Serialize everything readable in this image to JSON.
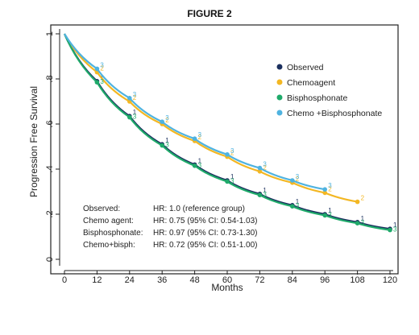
{
  "page": {
    "figure_label": "FIGURE 2"
  },
  "chart_data": {
    "type": "line",
    "xlabel": "Months",
    "ylabel": "Progression Free Survival",
    "xlim": [
      0,
      120
    ],
    "ylim": [
      0,
      1
    ],
    "xticks": [
      0,
      12,
      24,
      36,
      48,
      60,
      72,
      84,
      96,
      108,
      120
    ],
    "yticks": [
      0,
      0.2,
      0.4,
      0.6,
      0.8,
      1
    ],
    "ytick_labels": [
      "0",
      ".2",
      ".4",
      ".6",
      ".8",
      "1"
    ],
    "grid": false,
    "legend_position": "top-right",
    "series": [
      {
        "name": "Observed",
        "color": "#1b2f5e",
        "marker_label": "1",
        "x": [
          0,
          12,
          24,
          36,
          48,
          60,
          72,
          84,
          96,
          108,
          120
        ],
        "values": [
          1.0,
          0.79,
          0.635,
          0.51,
          0.42,
          0.35,
          0.29,
          0.24,
          0.2,
          0.165,
          0.135
        ]
      },
      {
        "name": "Chemoagent",
        "color": "#f3b723",
        "marker_label": "2",
        "x": [
          0,
          12,
          24,
          36,
          48,
          60,
          72,
          84,
          96,
          108
        ],
        "values": [
          1.0,
          0.83,
          0.7,
          0.6,
          0.525,
          0.455,
          0.39,
          0.34,
          0.295,
          0.255
        ]
      },
      {
        "name": "Bisphosphonate",
        "color": "#1faa6a",
        "marker_label": "3",
        "x": [
          0,
          12,
          24,
          36,
          48,
          60,
          72,
          84,
          96,
          108,
          120
        ],
        "values": [
          1.0,
          0.785,
          0.63,
          0.505,
          0.415,
          0.345,
          0.285,
          0.235,
          0.195,
          0.16,
          0.13
        ]
      },
      {
        "name": "Chemo +Bisphosphonate",
        "color": "#4fb3e0",
        "marker_label": "3",
        "x": [
          0,
          12,
          24,
          36,
          48,
          60,
          72,
          84,
          96
        ],
        "values": [
          1.0,
          0.845,
          0.715,
          0.61,
          0.535,
          0.465,
          0.405,
          0.35,
          0.31
        ]
      }
    ],
    "annotations": [
      {
        "label": "Observed:",
        "text": "HR: 1.0 (reference group)"
      },
      {
        "label": "Chemo agent:",
        "text": "HR: 0.75 (95% CI: 0.54-1.03)"
      },
      {
        "label": "Bisphosphonate:",
        "text": "HR: 0.97 (95% CI: 0.73-1.30)"
      },
      {
        "label": "Chemo+bisph:",
        "text": "HR: 0.72 (95% CI: 0.51-1.00)"
      }
    ]
  }
}
